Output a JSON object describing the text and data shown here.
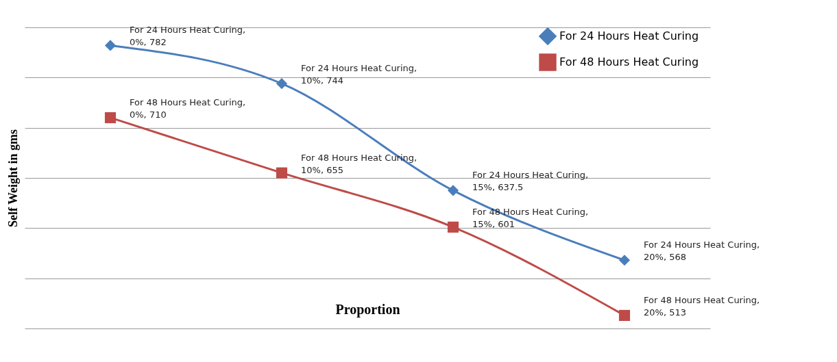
{
  "chart_data": {
    "type": "line",
    "xlabel": "Proportion",
    "ylabel": "Self Weight in gms",
    "categories": [
      null,
      null,
      null,
      null
    ],
    "series": [
      {
        "name": "For 24 Hours Heat Curing",
        "color": "#4a7ebb",
        "marker": "diamond",
        "values": [
          782,
          744,
          637.5,
          568
        ],
        "value_labels": [
          "For 24 Hours Heat Curing, 0%, 782",
          "For 24 Hours Heat Curing, 10%, 744",
          "For 24 Hours Heat Curing, 15%, 637.5",
          "For 24 Hours Heat Curing, 20%, 568"
        ]
      },
      {
        "name": "For 48 Hours Heat Curing",
        "color": "#be4b48",
        "marker": "square",
        "values": [
          710,
          655,
          601,
          513
        ],
        "value_labels": [
          "For 48 Hours Heat Curing, 0%, 710",
          "For 48 Hours Heat Curing, 10%, 655",
          "For 48 Hours Heat Curing, 15%, 601",
          "For 48 Hours Heat Curing, 20%, 513"
        ]
      }
    ],
    "ylim": [
      500,
      800
    ],
    "yticks": [
      {
        "value": 500,
        "label": null
      },
      {
        "value": 550,
        "label": null
      },
      {
        "value": 600,
        "label": null
      },
      {
        "value": 650,
        "label": null
      },
      {
        "value": 700,
        "label": null
      },
      {
        "value": 750,
        "label": null
      },
      {
        "value": 800,
        "label": null
      }
    ],
    "grid": "y",
    "legend": "right",
    "line_style": "solid"
  }
}
